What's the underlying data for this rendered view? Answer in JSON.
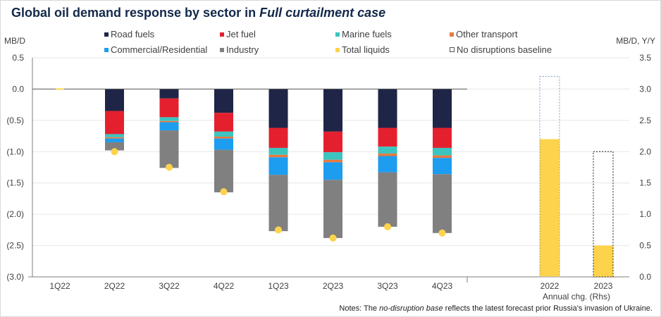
{
  "title": {
    "prefix": "Global oil demand response by sector in ",
    "emphasis": "Full curtailment case"
  },
  "notes": {
    "prefix": "Notes: The ",
    "emphasis": "no-disruption base",
    "suffix": " reflects the latest forecast prior Russia's invasion of Ukraine."
  },
  "colors": {
    "road_fuels": "#1f2547",
    "jet_fuel": "#e5202e",
    "marine_fuels": "#3cc4c0",
    "other_transport": "#e87a3c",
    "commercial_residential": "#1c9df0",
    "industry": "#808080",
    "total_liquids": "#fdd34c",
    "baseline_border": "#7b9bd0",
    "baseline_border_2023": "#1a1a1a"
  },
  "chart_data": {
    "type": "bar",
    "subtype": "stacked-bar-with-markers-and-secondary-axis",
    "title": "Global oil demand response by sector in Full curtailment case",
    "ylabel_left": "MB/D",
    "ylabel_right": "MB/D, Y/Y",
    "ylim_left": [
      -3.0,
      0.5
    ],
    "ylim_right": [
      0.0,
      3.5
    ],
    "y_ticks_left": [
      0.5,
      0.0,
      -0.5,
      -1.0,
      -1.5,
      -2.0,
      -2.5,
      -3.0
    ],
    "y_tick_labels_left": [
      "0.5",
      "0.0",
      "(0.5)",
      "(1.0)",
      "(1.5)",
      "(2.0)",
      "(2.5)",
      "(3.0)"
    ],
    "y_ticks_right": [
      3.5,
      3.0,
      2.5,
      2.0,
      1.5,
      1.0,
      0.5,
      0.0
    ],
    "y_tick_labels_right": [
      "3.5",
      "3.0",
      "2.5",
      "2.0",
      "1.5",
      "1.0",
      "0.5",
      "0.0"
    ],
    "categories": [
      "1Q22",
      "2Q22",
      "3Q22",
      "4Q22",
      "1Q23",
      "2Q23",
      "3Q23",
      "4Q23"
    ],
    "series": [
      {
        "name": "Road fuels",
        "key": "road_fuels",
        "values": [
          0.0,
          -0.35,
          -0.15,
          -0.38,
          -0.62,
          -0.68,
          -0.62,
          -0.62
        ]
      },
      {
        "name": "Jet fuel",
        "key": "jet_fuel",
        "values": [
          0.0,
          -0.37,
          -0.3,
          -0.3,
          -0.32,
          -0.33,
          -0.3,
          -0.32
        ]
      },
      {
        "name": "Marine fuels",
        "key": "marine_fuels",
        "values": [
          0.0,
          -0.05,
          -0.06,
          -0.08,
          -0.11,
          -0.12,
          -0.11,
          -0.12
        ]
      },
      {
        "name": "Other transport",
        "key": "other_transport",
        "values": [
          0.0,
          -0.02,
          -0.02,
          -0.03,
          -0.04,
          -0.04,
          -0.04,
          -0.04
        ]
      },
      {
        "name": "Commercial/Residential",
        "key": "commercial_residential",
        "values": [
          0.0,
          -0.06,
          -0.13,
          -0.18,
          -0.28,
          -0.28,
          -0.26,
          -0.26
        ]
      },
      {
        "name": "Industry",
        "key": "industry",
        "values": [
          0.0,
          -0.13,
          -0.6,
          -0.68,
          -0.9,
          -0.93,
          -0.87,
          -0.94
        ]
      }
    ],
    "total_liquids": [
      0.0,
      -1.0,
      -1.25,
      -1.64,
      -2.25,
      -2.38,
      -2.2,
      -2.3
    ],
    "annual": {
      "axis": "right",
      "categories": [
        "2022",
        "2023"
      ],
      "group_label": "Annual chg. (Rhs)",
      "total_liquids": [
        2.2,
        0.5
      ],
      "no_disruptions_baseline": [
        3.2,
        2.0
      ]
    },
    "legend": [
      {
        "label": "Road fuels",
        "key": "road_fuels"
      },
      {
        "label": "Jet fuel",
        "key": "jet_fuel"
      },
      {
        "label": "Marine fuels",
        "key": "marine_fuels"
      },
      {
        "label": "Other transport",
        "key": "other_transport"
      },
      {
        "label": "Commercial/Residential",
        "key": "commercial_residential"
      },
      {
        "label": "Industry",
        "key": "industry"
      },
      {
        "label": "Total liquids",
        "key": "total_liquids"
      },
      {
        "label": "No disruptions baseline",
        "key": "no_disruptions_baseline"
      }
    ],
    "legend_position": "top"
  }
}
